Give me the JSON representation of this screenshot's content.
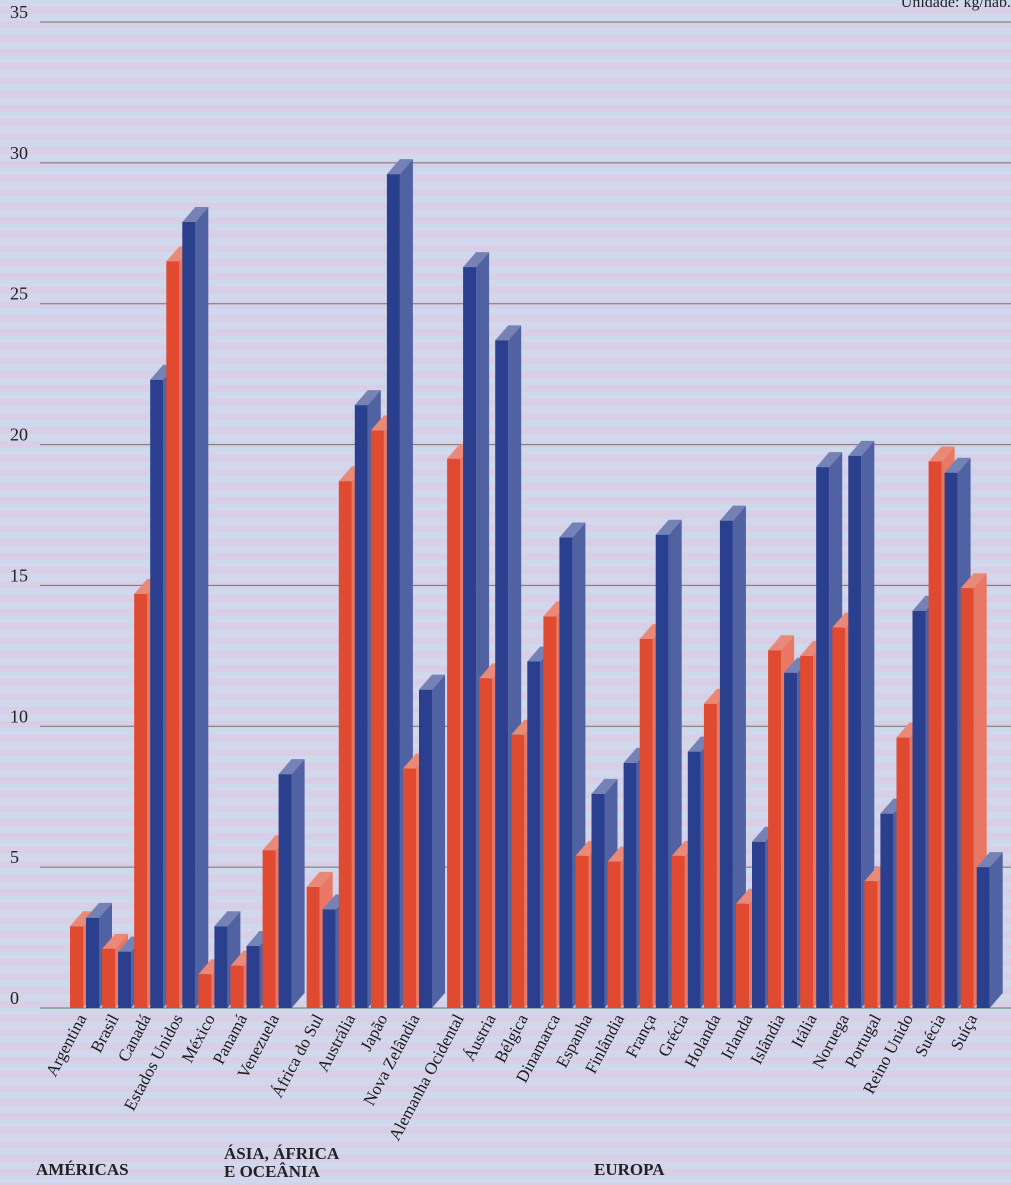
{
  "chart_data": {
    "type": "bar",
    "unit_label": "Unidade: kg/hab.",
    "ylim": [
      0,
      35
    ],
    "yticks": [
      0,
      5,
      10,
      15,
      20,
      25,
      30,
      35
    ],
    "grid": true,
    "categories": [
      "Argentina",
      "Brasil",
      "Canadá",
      "Estados Unidos",
      "México",
      "Panamá",
      "Venezuela",
      "África do Sul",
      "Austrália",
      "Japão",
      "Nova Zelândia",
      "Alemanha Ocidental",
      "Áustria",
      "Bélgica",
      "Dinamarca",
      "Espanha",
      "Finlândia",
      "França",
      "Grécia",
      "Holanda",
      "Irlanda",
      "Islândia",
      "Itália",
      "Noruega",
      "Portugal",
      "Reino Unido",
      "Suécia",
      "Suíça"
    ],
    "groups": [
      {
        "label_lines": [
          "AMÉRICAS"
        ],
        "count": 7
      },
      {
        "label_lines": [
          "ÁSIA, ÁFRICA",
          "E OCEÂNIA"
        ],
        "count": 4
      },
      {
        "label_lines": [
          "EUROPA"
        ],
        "count": 17
      }
    ],
    "series": [
      {
        "color": "#e04a30",
        "values": [
          2.9,
          2.1,
          14.7,
          26.5,
          1.2,
          1.5,
          5.6,
          4.3,
          18.7,
          20.5,
          8.5,
          19.5,
          11.7,
          9.7,
          13.9,
          5.4,
          5.2,
          13.1,
          5.4,
          10.8,
          3.7,
          12.7,
          12.5,
          13.5,
          4.5,
          9.6,
          19.4,
          14.9
        ]
      },
      {
        "color": "#2b3f8f",
        "values": [
          3.2,
          2.0,
          22.3,
          27.9,
          2.9,
          2.2,
          8.3,
          3.5,
          21.4,
          29.6,
          11.3,
          26.3,
          23.7,
          12.3,
          16.7,
          7.6,
          8.7,
          16.8,
          9.1,
          17.3,
          5.9,
          11.9,
          19.2,
          19.6,
          6.9,
          14.1,
          19.0,
          5.0
        ]
      }
    ]
  }
}
